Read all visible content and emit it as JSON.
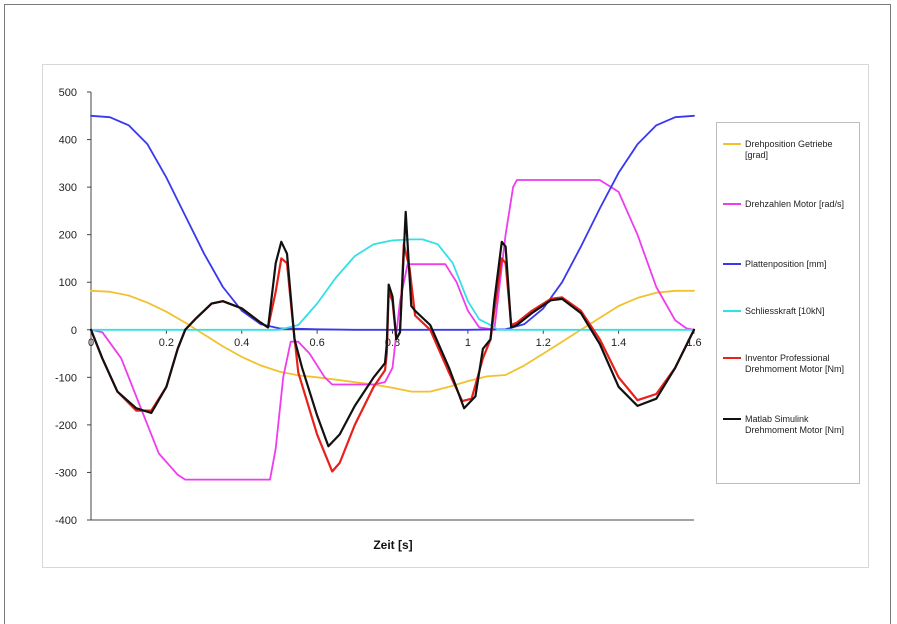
{
  "chart_data": {
    "type": "line",
    "title": "",
    "xlabel": "Zeit [s]",
    "ylabel": "",
    "xlim": [
      0,
      1.6
    ],
    "ylim": [
      -400,
      500
    ],
    "xticks": [
      0,
      0.2,
      0.4,
      0.6,
      0.8,
      1,
      1.2,
      1.4,
      1.6
    ],
    "xtick_labels": [
      "0",
      "0.2",
      "0.4",
      "0.6",
      "0.8",
      "1",
      "1.2",
      "1.4",
      "1.6"
    ],
    "yticks": [
      -400,
      -300,
      -200,
      -100,
      0,
      100,
      200,
      300,
      400,
      500
    ],
    "ytick_labels": [
      "-400",
      "-300",
      "-200",
      "-100",
      "0",
      "100",
      "200",
      "300",
      "400",
      "500"
    ],
    "grid": false,
    "legend_position": "right",
    "series": [
      {
        "name": "Drehposition Getriebe [grad]",
        "color": "#f2c12e",
        "points": [
          [
            0,
            82
          ],
          [
            0.05,
            80
          ],
          [
            0.1,
            72
          ],
          [
            0.15,
            57
          ],
          [
            0.2,
            38
          ],
          [
            0.25,
            15
          ],
          [
            0.3,
            -10
          ],
          [
            0.35,
            -35
          ],
          [
            0.4,
            -57
          ],
          [
            0.45,
            -75
          ],
          [
            0.5,
            -88
          ],
          [
            0.55,
            -96
          ],
          [
            0.6,
            -100
          ],
          [
            0.65,
            -105
          ],
          [
            0.7,
            -110
          ],
          [
            0.75,
            -115
          ],
          [
            0.8,
            -122
          ],
          [
            0.85,
            -130
          ],
          [
            0.9,
            -130
          ],
          [
            0.95,
            -120
          ],
          [
            1.0,
            -108
          ],
          [
            1.05,
            -98
          ],
          [
            1.1,
            -95
          ],
          [
            1.15,
            -75
          ],
          [
            1.2,
            -50
          ],
          [
            1.25,
            -25
          ],
          [
            1.3,
            0
          ],
          [
            1.35,
            25
          ],
          [
            1.4,
            50
          ],
          [
            1.45,
            67
          ],
          [
            1.5,
            78
          ],
          [
            1.55,
            82
          ],
          [
            1.6,
            82
          ]
        ]
      },
      {
        "name": "Drehzahlen Motor [rad/s]",
        "color": "#ee3cee",
        "points": [
          [
            0,
            0
          ],
          [
            0.03,
            -5
          ],
          [
            0.08,
            -60
          ],
          [
            0.13,
            -160
          ],
          [
            0.18,
            -260
          ],
          [
            0.23,
            -305
          ],
          [
            0.25,
            -315
          ],
          [
            0.3,
            -315
          ],
          [
            0.35,
            -315
          ],
          [
            0.4,
            -315
          ],
          [
            0.475,
            -315
          ],
          [
            0.49,
            -250
          ],
          [
            0.51,
            -100
          ],
          [
            0.53,
            -25
          ],
          [
            0.55,
            -25
          ],
          [
            0.58,
            -50
          ],
          [
            0.62,
            -100
          ],
          [
            0.64,
            -115
          ],
          [
            0.7,
            -115
          ],
          [
            0.75,
            -115
          ],
          [
            0.78,
            -110
          ],
          [
            0.8,
            -80
          ],
          [
            0.82,
            60
          ],
          [
            0.84,
            138
          ],
          [
            0.9,
            138
          ],
          [
            0.94,
            138
          ],
          [
            0.97,
            100
          ],
          [
            1.0,
            40
          ],
          [
            1.03,
            5
          ],
          [
            1.07,
            0
          ],
          [
            1.1,
            200
          ],
          [
            1.12,
            300
          ],
          [
            1.13,
            315
          ],
          [
            1.2,
            315
          ],
          [
            1.28,
            315
          ],
          [
            1.35,
            315
          ],
          [
            1.4,
            290
          ],
          [
            1.45,
            200
          ],
          [
            1.5,
            90
          ],
          [
            1.55,
            20
          ],
          [
            1.58,
            3
          ],
          [
            1.6,
            0
          ]
        ]
      },
      {
        "name": "Plattenposition [mm]",
        "color": "#3838ee",
        "points": [
          [
            0,
            450
          ],
          [
            0.05,
            447
          ],
          [
            0.1,
            430
          ],
          [
            0.15,
            390
          ],
          [
            0.2,
            320
          ],
          [
            0.25,
            240
          ],
          [
            0.3,
            160
          ],
          [
            0.35,
            90
          ],
          [
            0.4,
            40
          ],
          [
            0.45,
            12
          ],
          [
            0.5,
            3
          ],
          [
            0.55,
            2
          ],
          [
            0.6,
            1
          ],
          [
            0.7,
            0
          ],
          [
            0.8,
            0
          ],
          [
            0.9,
            0
          ],
          [
            1.0,
            0
          ],
          [
            1.1,
            1
          ],
          [
            1.15,
            12
          ],
          [
            1.2,
            45
          ],
          [
            1.25,
            100
          ],
          [
            1.3,
            175
          ],
          [
            1.35,
            255
          ],
          [
            1.4,
            330
          ],
          [
            1.45,
            390
          ],
          [
            1.5,
            430
          ],
          [
            1.55,
            447
          ],
          [
            1.6,
            450
          ]
        ]
      },
      {
        "name": "Schliesskraft [10kN]",
        "color": "#33e0e6",
        "points": [
          [
            0,
            0
          ],
          [
            0.5,
            0
          ],
          [
            0.55,
            10
          ],
          [
            0.6,
            55
          ],
          [
            0.65,
            110
          ],
          [
            0.7,
            155
          ],
          [
            0.75,
            180
          ],
          [
            0.8,
            188
          ],
          [
            0.85,
            190
          ],
          [
            0.88,
            190
          ],
          [
            0.92,
            180
          ],
          [
            0.96,
            140
          ],
          [
            1.0,
            60
          ],
          [
            1.03,
            22
          ],
          [
            1.06,
            10
          ],
          [
            1.08,
            0
          ],
          [
            1.6,
            0
          ]
        ]
      },
      {
        "name": "Inventor Professional Drehmoment Motor [Nm]",
        "color": "#e8201a",
        "points": [
          [
            0,
            0
          ],
          [
            0.03,
            -60
          ],
          [
            0.07,
            -130
          ],
          [
            0.12,
            -170
          ],
          [
            0.16,
            -170
          ],
          [
            0.2,
            -120
          ],
          [
            0.23,
            -40
          ],
          [
            0.25,
            0
          ],
          [
            0.28,
            25
          ],
          [
            0.32,
            55
          ],
          [
            0.35,
            60
          ],
          [
            0.4,
            45
          ],
          [
            0.45,
            15
          ],
          [
            0.47,
            5
          ],
          [
            0.49,
            80
          ],
          [
            0.505,
            150
          ],
          [
            0.52,
            140
          ],
          [
            0.535,
            20
          ],
          [
            0.55,
            -90
          ],
          [
            0.6,
            -220
          ],
          [
            0.64,
            -298
          ],
          [
            0.66,
            -280
          ],
          [
            0.7,
            -200
          ],
          [
            0.75,
            -120
          ],
          [
            0.78,
            -85
          ],
          [
            0.785,
            -50
          ],
          [
            0.79,
            80
          ],
          [
            0.8,
            60
          ],
          [
            0.81,
            -20
          ],
          [
            0.82,
            -5
          ],
          [
            0.83,
            180
          ],
          [
            0.845,
            130
          ],
          [
            0.86,
            30
          ],
          [
            0.9,
            0
          ],
          [
            0.95,
            -90
          ],
          [
            0.985,
            -150
          ],
          [
            1.01,
            -145
          ],
          [
            1.04,
            -60
          ],
          [
            1.06,
            -20
          ],
          [
            1.07,
            40
          ],
          [
            1.09,
            150
          ],
          [
            1.1,
            140
          ],
          [
            1.115,
            10
          ],
          [
            1.13,
            15
          ],
          [
            1.17,
            40
          ],
          [
            1.22,
            65
          ],
          [
            1.25,
            68
          ],
          [
            1.3,
            40
          ],
          [
            1.35,
            -20
          ],
          [
            1.4,
            -100
          ],
          [
            1.45,
            -148
          ],
          [
            1.5,
            -135
          ],
          [
            1.55,
            -80
          ],
          [
            1.6,
            0
          ]
        ]
      },
      {
        "name": "Matlab Simulink Drehmoment Motor [Nm]",
        "color": "#111111",
        "points": [
          [
            0,
            0
          ],
          [
            0.03,
            -60
          ],
          [
            0.07,
            -130
          ],
          [
            0.12,
            -165
          ],
          [
            0.16,
            -175
          ],
          [
            0.2,
            -120
          ],
          [
            0.23,
            -40
          ],
          [
            0.25,
            0
          ],
          [
            0.28,
            25
          ],
          [
            0.32,
            55
          ],
          [
            0.35,
            60
          ],
          [
            0.4,
            45
          ],
          [
            0.45,
            15
          ],
          [
            0.47,
            5
          ],
          [
            0.49,
            140
          ],
          [
            0.505,
            185
          ],
          [
            0.52,
            160
          ],
          [
            0.54,
            -20
          ],
          [
            0.56,
            -80
          ],
          [
            0.6,
            -180
          ],
          [
            0.63,
            -245
          ],
          [
            0.66,
            -220
          ],
          [
            0.7,
            -160
          ],
          [
            0.75,
            -100
          ],
          [
            0.78,
            -70
          ],
          [
            0.785,
            -30
          ],
          [
            0.79,
            95
          ],
          [
            0.8,
            70
          ],
          [
            0.81,
            -20
          ],
          [
            0.82,
            -5
          ],
          [
            0.835,
            248
          ],
          [
            0.85,
            50
          ],
          [
            0.86,
            40
          ],
          [
            0.9,
            10
          ],
          [
            0.95,
            -80
          ],
          [
            0.99,
            -165
          ],
          [
            1.02,
            -140
          ],
          [
            1.04,
            -40
          ],
          [
            1.06,
            -20
          ],
          [
            1.07,
            60
          ],
          [
            1.09,
            185
          ],
          [
            1.1,
            175
          ],
          [
            1.115,
            5
          ],
          [
            1.13,
            10
          ],
          [
            1.17,
            35
          ],
          [
            1.22,
            62
          ],
          [
            1.25,
            65
          ],
          [
            1.3,
            35
          ],
          [
            1.35,
            -30
          ],
          [
            1.4,
            -120
          ],
          [
            1.45,
            -160
          ],
          [
            1.5,
            -145
          ],
          [
            1.55,
            -80
          ],
          [
            1.6,
            0
          ]
        ]
      }
    ]
  }
}
